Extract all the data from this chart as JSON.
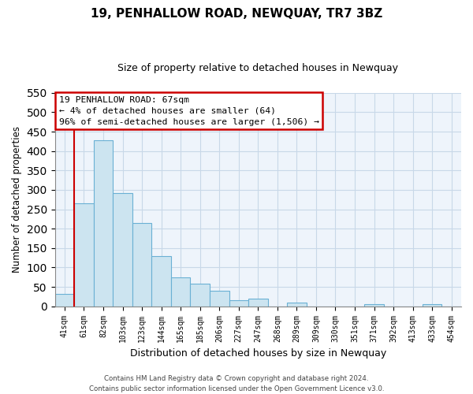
{
  "title": "19, PENHALLOW ROAD, NEWQUAY, TR7 3BZ",
  "subtitle": "Size of property relative to detached houses in Newquay",
  "xlabel": "Distribution of detached houses by size in Newquay",
  "ylabel": "Number of detached properties",
  "bar_labels": [
    "41sqm",
    "61sqm",
    "82sqm",
    "103sqm",
    "123sqm",
    "144sqm",
    "165sqm",
    "185sqm",
    "206sqm",
    "227sqm",
    "247sqm",
    "268sqm",
    "289sqm",
    "309sqm",
    "330sqm",
    "351sqm",
    "371sqm",
    "392sqm",
    "413sqm",
    "433sqm",
    "454sqm"
  ],
  "bar_heights": [
    32,
    265,
    428,
    291,
    214,
    129,
    75,
    59,
    40,
    15,
    20,
    0,
    10,
    0,
    0,
    0,
    5,
    0,
    0,
    5,
    0
  ],
  "bar_color": "#cce4f0",
  "bar_edge_color": "#6ab0d4",
  "vline_color": "#cc0000",
  "ylim": [
    0,
    550
  ],
  "yticks": [
    0,
    50,
    100,
    150,
    200,
    250,
    300,
    350,
    400,
    450,
    500,
    550
  ],
  "annotation_title": "19 PENHALLOW ROAD: 67sqm",
  "annotation_line1": "← 4% of detached houses are smaller (64)",
  "annotation_line2": "96% of semi-detached houses are larger (1,506) →",
  "annotation_box_color": "#ffffff",
  "annotation_box_edge": "#cc0000",
  "footer_line1": "Contains HM Land Registry data © Crown copyright and database right 2024.",
  "footer_line2": "Contains public sector information licensed under the Open Government Licence v3.0.",
  "background_color": "#ffffff",
  "plot_bg_color": "#eef4fb",
  "grid_color": "#c8d8e8"
}
